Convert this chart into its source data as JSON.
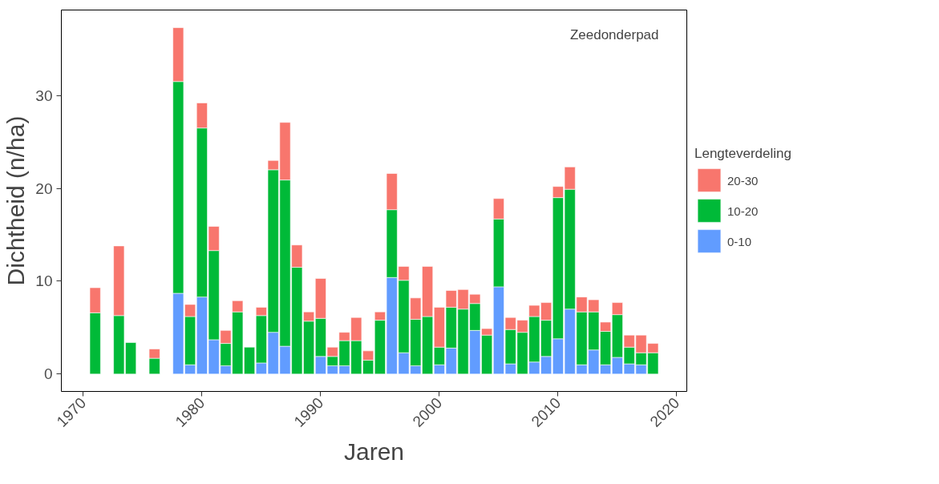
{
  "chart_data": {
    "type": "bar",
    "stacked": true,
    "xlabel": "Jaren",
    "ylabel": "Dichtheid (n/ha)",
    "legend_title": "Lengteverdeling",
    "legend": "right",
    "grid": false,
    "annotations": [
      "Zeedonderpad"
    ],
    "x": [
      1971,
      1973,
      1974,
      1976,
      1978,
      1979,
      1980,
      1981,
      1982,
      1983,
      1984,
      1985,
      1986,
      1987,
      1988,
      1989,
      1990,
      1991,
      1992,
      1993,
      1994,
      1995,
      1996,
      1997,
      1998,
      1999,
      2000,
      2001,
      2002,
      2003,
      2004,
      2005,
      2006,
      2007,
      2008,
      2009,
      2010,
      2011,
      2012,
      2013,
      2014,
      2015,
      2016,
      2017,
      2018
    ],
    "xlim": [
      1968.15,
      2020.85
    ],
    "xticks": [
      1970,
      1980,
      1990,
      2000,
      2010,
      2020
    ],
    "ylim": [
      -1.87,
      39.2
    ],
    "yticks": [
      0,
      10,
      20,
      30
    ],
    "series": [
      {
        "name": "0-10",
        "color": "#619cff",
        "values": [
          null,
          null,
          null,
          null,
          8.7,
          1.0,
          8.3,
          3.7,
          0.9,
          null,
          null,
          1.2,
          4.5,
          3.0,
          null,
          null,
          1.9,
          0.9,
          0.9,
          null,
          null,
          null,
          10.4,
          2.3,
          0.9,
          null,
          1.0,
          2.8,
          null,
          4.7,
          null,
          9.4,
          1.1,
          null,
          1.3,
          1.9,
          3.8,
          7.0,
          1.0,
          2.6,
          1.0,
          1.8,
          1.1,
          1.0,
          null
        ]
      },
      {
        "name": "10-20",
        "color": "#00ba38",
        "values": [
          6.6,
          6.3,
          3.4,
          1.7,
          22.8,
          5.2,
          18.2,
          9.6,
          2.4,
          6.7,
          2.9,
          5.1,
          17.5,
          17.9,
          11.5,
          5.7,
          4.1,
          1.0,
          2.7,
          3.6,
          1.5,
          5.8,
          7.3,
          7.8,
          5.0,
          6.2,
          1.9,
          4.4,
          7.0,
          2.9,
          4.2,
          7.3,
          3.7,
          4.5,
          4.9,
          3.9,
          15.2,
          12.9,
          5.7,
          4.1,
          3.6,
          4.6,
          1.8,
          1.3,
          2.3
        ]
      },
      {
        "name": "20-30",
        "color": "#f8766d",
        "values": [
          2.7,
          7.5,
          null,
          1.0,
          5.8,
          1.3,
          2.7,
          2.6,
          1.4,
          1.2,
          null,
          0.9,
          1.0,
          6.2,
          2.4,
          1.0,
          4.3,
          1.0,
          0.9,
          2.5,
          1.0,
          0.9,
          3.9,
          1.5,
          2.3,
          5.4,
          4.3,
          1.8,
          2.1,
          1.0,
          0.7,
          2.2,
          1.3,
          1.3,
          1.2,
          1.9,
          1.2,
          2.4,
          1.6,
          1.3,
          1.0,
          1.3,
          1.3,
          1.9,
          1.0
        ]
      }
    ]
  }
}
